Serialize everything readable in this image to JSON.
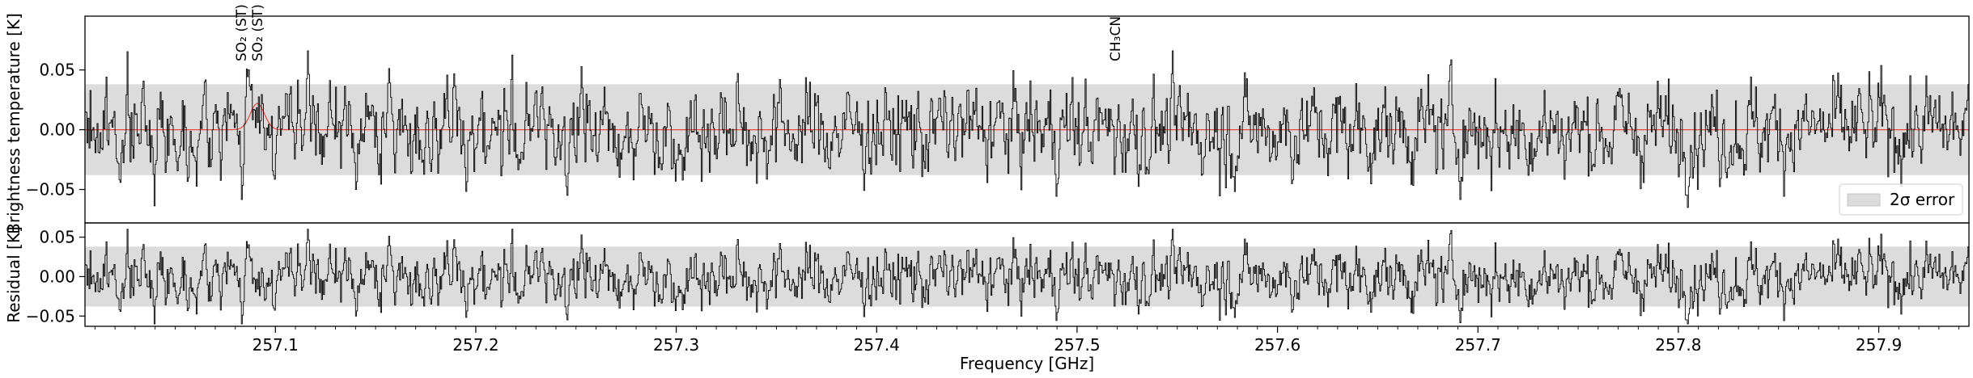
{
  "chart_data": [
    {
      "type": "line",
      "panel": "main",
      "ylabel": "Brightness temperature [K]",
      "xlim": [
        257.005,
        257.945
      ],
      "ylim": [
        -0.078,
        0.095
      ],
      "yticks": [
        -0.05,
        0.0,
        0.05
      ],
      "ytick_labels": [
        "−0.05",
        "0.00",
        "0.05"
      ],
      "band_2sigma": [
        -0.038,
        0.038
      ],
      "legend": {
        "label": "2σ error",
        "placement": "lower right"
      },
      "series": [
        {
          "role": "observed spectrum",
          "color": "#000000",
          "n_channels": 1880,
          "amplitude_sd": 0.02,
          "seed": 7
        },
        {
          "role": "model",
          "color": "#e8473c",
          "peak_center": 257.091,
          "peak_height": 0.022,
          "peak_sigma": 0.0035
        }
      ],
      "line_markers": [
        {
          "x": 257.083,
          "label": "SO₂ (ST)"
        },
        {
          "x": 257.091,
          "label": "SO₂ (ST)"
        },
        {
          "x": 257.519,
          "label": "CH₃CN"
        }
      ],
      "colors": {
        "band": "#dcdcdc",
        "model": "#e8473c",
        "data": "#000000"
      }
    },
    {
      "type": "line",
      "panel": "residual",
      "ylabel": "Residual [K]",
      "xlabel": "Frequency [GHz]",
      "xlim": [
        257.005,
        257.945
      ],
      "ylim": [
        -0.063,
        0.068
      ],
      "yticks": [
        -0.05,
        0.0,
        0.05
      ],
      "ytick_labels": [
        "−0.05",
        "0.00",
        "0.05"
      ],
      "xticks": [
        257.1,
        257.2,
        257.3,
        257.4,
        257.5,
        257.6,
        257.7,
        257.8,
        257.9
      ],
      "xtick_labels": [
        "257.1",
        "257.2",
        "257.3",
        "257.4",
        "257.5",
        "257.6",
        "257.7",
        "257.8",
        "257.9"
      ],
      "band_2sigma": [
        -0.038,
        0.038
      ]
    }
  ]
}
